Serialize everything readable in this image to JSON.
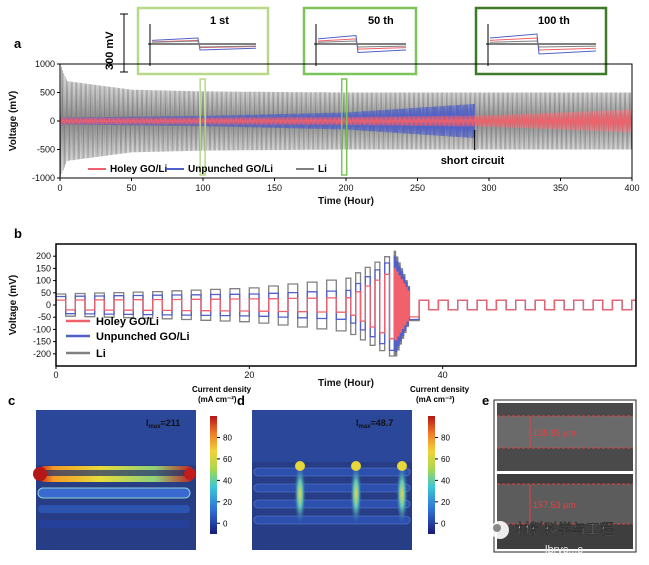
{
  "panel_labels": {
    "a": "a",
    "b": "b",
    "c": "c",
    "d": "d",
    "e": "e"
  },
  "colors": {
    "holey": "#f0616b",
    "unpunched": "#5060c8",
    "li": "#808080",
    "inset_light": "#b8d98a",
    "inset_mid": "#7cc35a",
    "inset_dark": "#3f7a2a"
  },
  "chart_data": [
    {
      "type": "line",
      "title": "",
      "xlabel": "Time (Hour)",
      "ylabel": "Voltage (mV)",
      "xlim": [
        0,
        400
      ],
      "ylim": [
        -1000,
        1000
      ],
      "xticks": [
        0,
        50,
        100,
        150,
        200,
        250,
        300,
        350,
        400
      ],
      "yticks": [
        1000,
        500,
        0,
        -500,
        -1000
      ],
      "series": [
        {
          "name": "Holey GO/Li",
          "x": [
            0,
            100,
            200,
            300,
            400
          ],
          "amplitude": [
            60,
            60,
            70,
            100,
            200
          ]
        },
        {
          "name": "Unpunched GO/Li",
          "x": [
            0,
            100,
            200,
            290
          ],
          "amplitude": [
            60,
            90,
            150,
            300
          ]
        },
        {
          "name": "Li",
          "x": [
            0,
            5,
            50,
            100,
            200,
            300,
            400
          ],
          "amplitude": [
            1000,
            700,
            550,
            520,
            500,
            500,
            500
          ]
        }
      ],
      "annotation": "short circuit",
      "annotation_x": 290,
      "inset_scale": "300 mV",
      "insets": [
        "1 st",
        "50 th",
        "100 th"
      ]
    },
    {
      "type": "line",
      "title": "",
      "xlabel": "Time (Hour)",
      "ylabel": "Voltage (mV)",
      "xlim": [
        0,
        60
      ],
      "ylim": [
        -250,
        250
      ],
      "xticks": [
        0,
        20,
        40
      ],
      "yticks": [
        200,
        150,
        100,
        50,
        0,
        -50,
        -100,
        -150,
        -200
      ],
      "series": [
        {
          "name": "Holey GO/Li",
          "x": [
            0,
            10,
            20,
            30,
            35,
            37,
            60
          ],
          "amplitude": [
            20,
            22,
            25,
            30,
            150,
            20,
            20
          ]
        },
        {
          "name": "Unpunched GO/Li",
          "x": [
            0,
            10,
            20,
            30,
            35,
            37,
            60
          ],
          "amplitude": [
            35,
            40,
            45,
            60,
            200,
            20,
            20
          ]
        },
        {
          "name": "Li",
          "x": [
            0,
            10,
            20,
            30,
            35,
            37,
            60
          ],
          "amplitude": [
            45,
            55,
            70,
            110,
            220,
            20,
            20
          ]
        }
      ]
    },
    {
      "type": "heatmap",
      "title": "",
      "colorbar_label": "Current density",
      "colorbar_unit": "(mA cm⁻²)",
      "colorbar_ticks": [
        80,
        60,
        40,
        20,
        0
      ],
      "i_max_label": "I",
      "i_max_sub": "max",
      "i_max_value": "=211"
    },
    {
      "type": "heatmap",
      "title": "",
      "colorbar_label": "Current density",
      "colorbar_unit": "(mA cm⁻²)",
      "colorbar_ticks": [
        80,
        60,
        40,
        20,
        0
      ],
      "i_max_label": "I",
      "i_max_sub": "max",
      "i_max_value": "=48.7"
    }
  ],
  "sem": {
    "top_label": "138.83 μm",
    "bottom_label": "157.53 μm"
  },
  "watermark": {
    "text": "材料科学与工程",
    "sub": "lbryc...c"
  }
}
